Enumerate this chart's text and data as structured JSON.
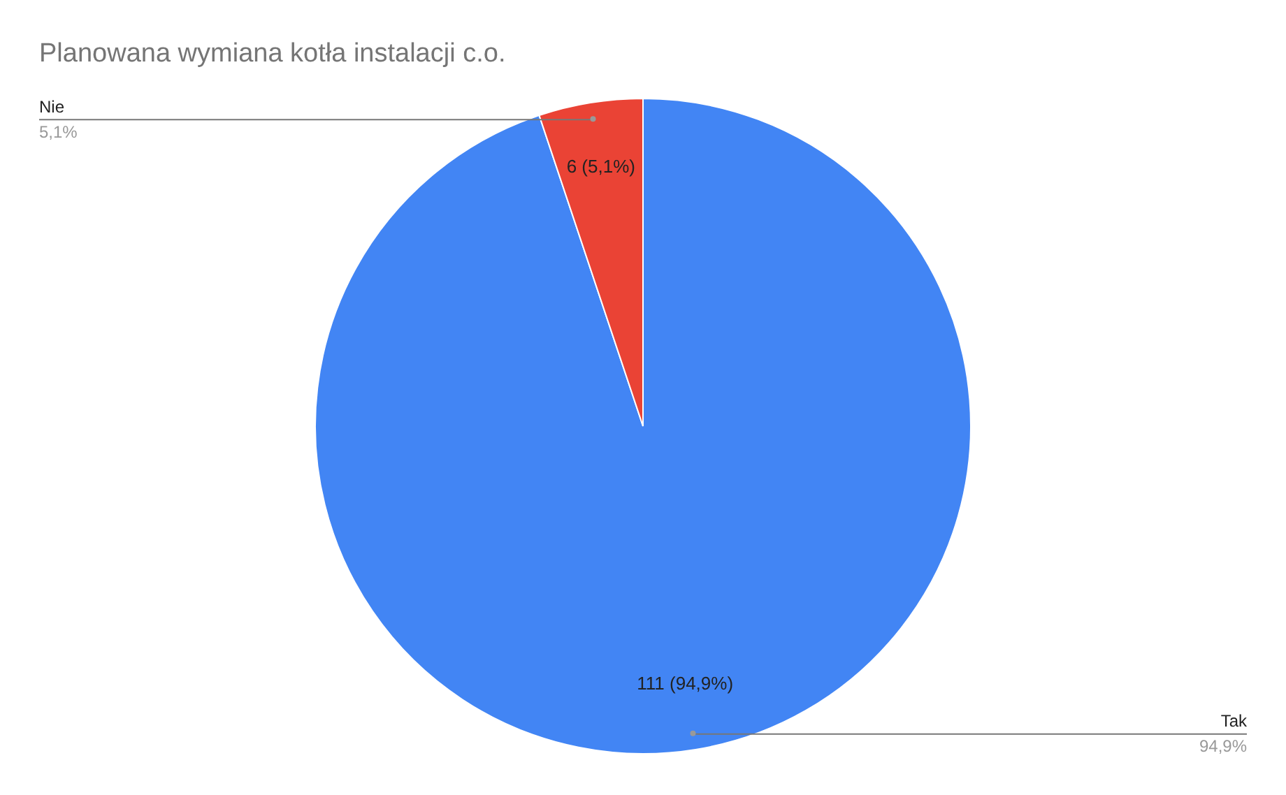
{
  "chart_data": {
    "type": "pie",
    "title": "Planowana wymiana kotła instalacji c.o.",
    "categories": [
      "Tak",
      "Nie"
    ],
    "values": [
      111,
      6
    ],
    "colors": [
      "#4285f4",
      "#ea4335"
    ],
    "value_labels": [
      "111 (94,9%)",
      "6 (5,1%)"
    ],
    "annotations": [
      "94,9%",
      "5,1%"
    ],
    "legend": false
  }
}
